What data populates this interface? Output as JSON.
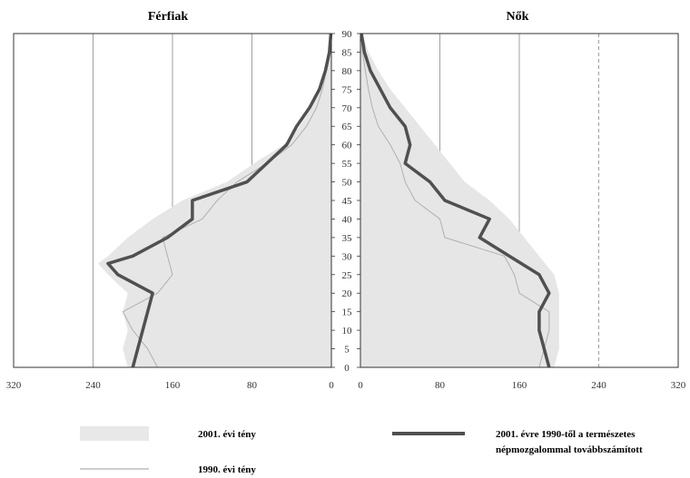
{
  "chart_data": {
    "type": "population-pyramid",
    "unit_note": "",
    "panels": [
      {
        "side": "left",
        "title": "Férfiak"
      },
      {
        "side": "right",
        "title": "Nők"
      }
    ],
    "age_ticks": [
      0,
      5,
      10,
      15,
      20,
      25,
      30,
      35,
      40,
      45,
      50,
      55,
      60,
      65,
      70,
      75,
      80,
      85,
      90
    ],
    "x_ticks_left": [
      "320",
      "240",
      "160",
      "80",
      "0"
    ],
    "x_ticks_right": [
      "0",
      "80",
      "160",
      "240",
      "320"
    ],
    "xlim": [
      0,
      320
    ],
    "ylim": [
      0,
      90
    ],
    "grid": "vertical",
    "series": [
      {
        "name": "2001. évi tény",
        "style": "area",
        "color": "#e6e6e6",
        "men": [
          [
            0,
            205
          ],
          [
            5,
            210
          ],
          [
            10,
            205
          ],
          [
            15,
            210
          ],
          [
            20,
            205
          ],
          [
            25,
            225
          ],
          [
            28,
            235
          ],
          [
            30,
            225
          ],
          [
            35,
            205
          ],
          [
            40,
            180
          ],
          [
            45,
            150
          ],
          [
            50,
            105
          ],
          [
            55,
            78
          ],
          [
            60,
            48
          ],
          [
            65,
            32
          ],
          [
            70,
            20
          ],
          [
            75,
            12
          ],
          [
            80,
            7
          ],
          [
            85,
            3
          ],
          [
            90,
            1
          ]
        ],
        "women": [
          [
            0,
            195
          ],
          [
            5,
            200
          ],
          [
            10,
            200
          ],
          [
            15,
            200
          ],
          [
            20,
            200
          ],
          [
            25,
            195
          ],
          [
            30,
            180
          ],
          [
            35,
            165
          ],
          [
            40,
            150
          ],
          [
            45,
            130
          ],
          [
            50,
            105
          ],
          [
            55,
            90
          ],
          [
            60,
            75
          ],
          [
            65,
            60
          ],
          [
            70,
            45
          ],
          [
            75,
            30
          ],
          [
            80,
            18
          ],
          [
            85,
            8
          ],
          [
            90,
            2
          ]
        ]
      },
      {
        "name": "1990. évi tény",
        "style": "thin-line",
        "color": "#b0b0b0",
        "men": [
          [
            0,
            175
          ],
          [
            5,
            185
          ],
          [
            10,
            200
          ],
          [
            15,
            210
          ],
          [
            20,
            175
          ],
          [
            25,
            160
          ],
          [
            30,
            165
          ],
          [
            35,
            170
          ],
          [
            40,
            130
          ],
          [
            45,
            115
          ],
          [
            50,
            95
          ],
          [
            55,
            65
          ],
          [
            60,
            40
          ],
          [
            65,
            25
          ],
          [
            70,
            15
          ],
          [
            75,
            9
          ],
          [
            80,
            5
          ],
          [
            85,
            2
          ],
          [
            90,
            0.5
          ]
        ],
        "women": [
          [
            0,
            180
          ],
          [
            5,
            185
          ],
          [
            10,
            190
          ],
          [
            15,
            190
          ],
          [
            20,
            160
          ],
          [
            25,
            155
          ],
          [
            30,
            145
          ],
          [
            35,
            85
          ],
          [
            40,
            80
          ],
          [
            45,
            55
          ],
          [
            50,
            45
          ],
          [
            55,
            40
          ],
          [
            60,
            30
          ],
          [
            65,
            18
          ],
          [
            70,
            12
          ],
          [
            75,
            8
          ],
          [
            80,
            5
          ],
          [
            85,
            2
          ],
          [
            90,
            0.5
          ]
        ]
      },
      {
        "name": "2001. évre 1990-től a természetes népmozgalommal továbbszámított",
        "style": "thick-line",
        "color": "#505050",
        "men": [
          [
            0,
            200
          ],
          [
            5,
            195
          ],
          [
            10,
            190
          ],
          [
            15,
            185
          ],
          [
            20,
            180
          ],
          [
            25,
            215
          ],
          [
            28,
            225
          ],
          [
            30,
            200
          ],
          [
            35,
            165
          ],
          [
            40,
            140
          ],
          [
            45,
            140
          ],
          [
            50,
            85
          ],
          [
            55,
            65
          ],
          [
            60,
            45
          ],
          [
            65,
            35
          ],
          [
            70,
            22
          ],
          [
            75,
            12
          ],
          [
            80,
            6
          ],
          [
            85,
            2
          ],
          [
            90,
            0.5
          ]
        ],
        "women": [
          [
            0,
            190
          ],
          [
            5,
            185
          ],
          [
            10,
            180
          ],
          [
            15,
            180
          ],
          [
            20,
            190
          ],
          [
            25,
            180
          ],
          [
            30,
            150
          ],
          [
            35,
            120
          ],
          [
            40,
            130
          ],
          [
            45,
            85
          ],
          [
            50,
            70
          ],
          [
            55,
            45
          ],
          [
            60,
            50
          ],
          [
            65,
            45
          ],
          [
            70,
            30
          ],
          [
            75,
            20
          ],
          [
            80,
            10
          ],
          [
            85,
            4
          ],
          [
            90,
            1
          ]
        ]
      }
    ]
  },
  "legend": {
    "item1": "2001. évi tény",
    "item2": "1990. évi tény",
    "item3_line1": "2001. évre 1990-től a természetes",
    "item3_line2": "népmozgalommal továbbszámított"
  }
}
